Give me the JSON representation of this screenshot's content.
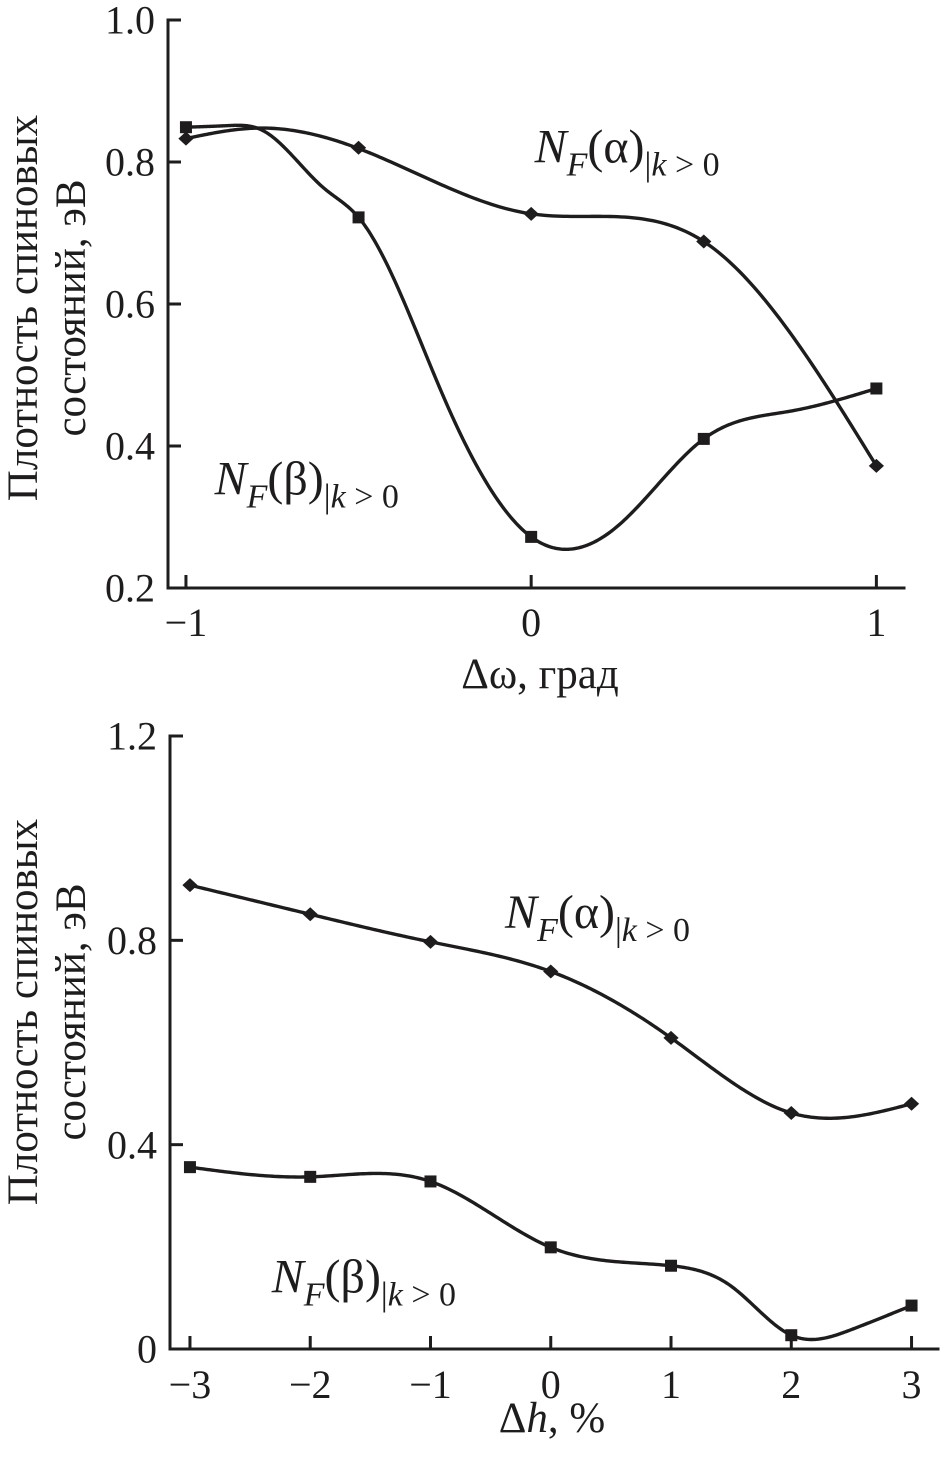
{
  "figure": {
    "background": "#ffffff",
    "ink_color": "#1f1c1d"
  },
  "chart_data": [
    {
      "type": "line",
      "panel": "top",
      "xlabel_parts": [
        {
          "t": "Δω"
        },
        {
          "t": ", град"
        }
      ],
      "xlabel_text": "Δω, град",
      "ylabel_lines": [
        "Плотность спиновых",
        "состояний, эВ"
      ],
      "ylabel_text": "Плотность спиновых состояний, эВ",
      "xlim": [
        -1.052,
        1.08
      ],
      "ylim": [
        0.2,
        1.0
      ],
      "xticks": [
        -1,
        0,
        1
      ],
      "xtick_labels": [
        "−1",
        "0",
        "1"
      ],
      "yticks": [
        0.2,
        0.4,
        0.6,
        0.8,
        1.0
      ],
      "ytick_labels": [
        "0.2",
        "0.4",
        "0.6",
        "0.8",
        "1.0"
      ],
      "grid": false,
      "legend": "inline-labels",
      "x": [
        -1,
        -0.5,
        0,
        0.5,
        1
      ],
      "series": [
        {
          "name": "NF(alpha)|k>0",
          "marker": "diamond",
          "values": [
            0.833,
            0.82,
            0.727,
            0.688,
            0.372
          ],
          "label_parts": [
            {
              "t": "N",
              "style": "italic"
            },
            {
              "t": "F",
              "style": "italic-sub"
            },
            {
              "t": "(α)",
              "style": "main"
            },
            {
              "t": "|",
              "style": "sub"
            },
            {
              "t": "k",
              "style": "italic-sub"
            },
            {
              "t": " > 0",
              "style": "sub"
            }
          ],
          "label_text": "NF(α)|k > 0",
          "label_pos": [
            0.01,
            0.799
          ],
          "curve_points": [
            [
              -1,
              0.833
            ],
            [
              -0.79,
              0.8478
            ],
            [
              -0.5,
              0.819
            ],
            [
              0,
              0.727
            ],
            [
              0.5,
              0.688
            ],
            [
              1,
              0.372
            ]
          ]
        },
        {
          "name": "NF(beta)|k>0",
          "marker": "square",
          "values": [
            0.849,
            0.722,
            0.272,
            0.41,
            0.481
          ],
          "curve_points": [
            [
              -1,
              0.849
            ],
            [
              -0.88,
              0.8512
            ],
            [
              -0.78,
              0.845
            ],
            [
              -0.6,
              0.763
            ],
            [
              -0.5,
              0.722
            ],
            [
              -0.25,
              0.465
            ],
            [
              0,
              0.272
            ],
            [
              0.25,
              0.287
            ],
            [
              0.5,
              0.41
            ],
            [
              0.75,
              0.449
            ],
            [
              1,
              0.481
            ]
          ],
          "label_parts": [
            {
              "t": "N",
              "style": "italic"
            },
            {
              "t": "F",
              "style": "italic-sub"
            },
            {
              "t": "(β)",
              "style": "main"
            },
            {
              "t": "|",
              "style": "sub"
            },
            {
              "t": "k",
              "style": "italic-sub"
            },
            {
              "t": " > 0",
              "style": "sub"
            }
          ],
          "label_text": "NF(β)|k > 0",
          "label_pos": [
            -0.917,
            0.332
          ]
        }
      ]
    },
    {
      "type": "line",
      "panel": "bottom",
      "xlabel_parts": [
        {
          "t": "Δ"
        },
        {
          "t": "h",
          "style": "italic"
        },
        {
          "t": ", %"
        }
      ],
      "xlabel_text": "Δh, %",
      "ylabel_lines": [
        "Плотность спиновых",
        "состояний, эВ"
      ],
      "ylabel_text": "Плотность спиновых состояний, эВ",
      "xlim": [
        -3.166,
        3.22
      ],
      "ylim": [
        0,
        1.2
      ],
      "xticks": [
        -3,
        -2,
        -1,
        0,
        1,
        2,
        3
      ],
      "xtick_labels": [
        "−3",
        "−2",
        "−1",
        "0",
        "1",
        "2",
        "3"
      ],
      "yticks": [
        0,
        0.4,
        0.8,
        1.2
      ],
      "ytick_labels": [
        "0",
        "0.4",
        "0.8",
        "1.2"
      ],
      "grid": false,
      "legend": "inline-labels",
      "x": [
        -3,
        -2,
        -1,
        0,
        1,
        2,
        3
      ],
      "series": [
        {
          "name": "NF(alpha)|k>0",
          "marker": "diamond",
          "values": [
            0.908,
            0.851,
            0.797,
            0.739,
            0.609,
            0.462,
            0.48
          ],
          "label_parts": [
            {
              "t": "N",
              "style": "italic"
            },
            {
              "t": "F",
              "style": "italic-sub"
            },
            {
              "t": "(α)",
              "style": "main"
            },
            {
              "t": "|",
              "style": "sub"
            },
            {
              "t": "k",
              "style": "italic-sub"
            },
            {
              "t": " > 0",
              "style": "sub"
            }
          ],
          "label_text": "NF(α)|k > 0",
          "label_pos": [
            -0.38,
            0.824
          ]
        },
        {
          "name": "NF(beta)|k>0",
          "marker": "square",
          "values": [
            0.356,
            0.337,
            0.328,
            0.199,
            0.163,
            0.027,
            0.085
          ],
          "curve_points": [
            [
              -3,
              0.356
            ],
            [
              -2,
              0.337
            ],
            [
              -1,
              0.328
            ],
            [
              0,
              0.199
            ],
            [
              1,
              0.163
            ],
            [
              1.5,
              0.123
            ],
            [
              2,
              0.027
            ],
            [
              2.5,
              0.038
            ],
            [
              3,
              0.085
            ]
          ],
          "label_parts": [
            {
              "t": "N",
              "style": "italic"
            },
            {
              "t": "F",
              "style": "italic-sub"
            },
            {
              "t": "(β)",
              "style": "main"
            },
            {
              "t": "|",
              "style": "sub"
            },
            {
              "t": "k",
              "style": "italic-sub"
            },
            {
              "t": " > 0",
              "style": "sub"
            }
          ],
          "label_text": "NF(β)|k > 0",
          "label_pos": [
            -2.32,
            0.111
          ]
        }
      ]
    }
  ]
}
